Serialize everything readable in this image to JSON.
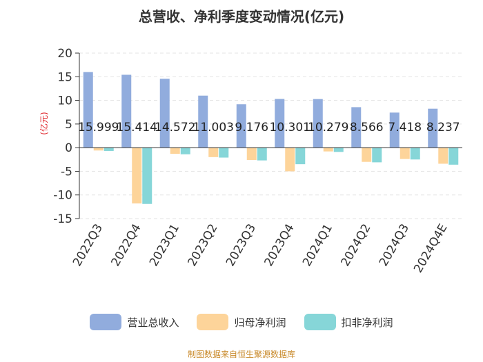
{
  "chart_data": {
    "type": "bar",
    "title": "总营收、净利季度变动情况(亿元)",
    "ylabel": "(亿元)",
    "xlabel": "",
    "ylim": [
      -15,
      20
    ],
    "yticks": [
      20,
      15,
      10,
      5,
      0,
      -5,
      -10,
      -15
    ],
    "categories": [
      "2022Q3",
      "2022Q4",
      "2023Q1",
      "2023Q2",
      "2023Q3",
      "2023Q4",
      "2024Q1",
      "2024Q2",
      "2024Q3",
      "2024Q4E"
    ],
    "series": [
      {
        "name": "营业总收入",
        "color": "#91acdd",
        "values": [
          15.999,
          15.414,
          14.572,
          11.003,
          9.176,
          10.301,
          10.279,
          8.566,
          7.418,
          8.237
        ],
        "labels": [
          "15.999",
          "15.414",
          "14.572",
          "11.003",
          "9.176",
          "10.301",
          "10.279",
          "8.566",
          "7.418",
          "8.237"
        ]
      },
      {
        "name": "归母净利润",
        "color": "#fdd49a",
        "values": [
          -0.6,
          -11.8,
          -1.3,
          -2.0,
          -2.6,
          -5.0,
          -0.8,
          -3.0,
          -2.4,
          -3.4
        ]
      },
      {
        "name": "扣非净利润",
        "color": "#86d6d8",
        "values": [
          -0.7,
          -11.9,
          -1.4,
          -2.1,
          -2.7,
          -3.5,
          -0.9,
          -3.1,
          -2.5,
          -3.6
        ]
      }
    ],
    "legend_position": "bottom",
    "grid": true
  },
  "source": "制图数据来自恒生聚源数据库"
}
